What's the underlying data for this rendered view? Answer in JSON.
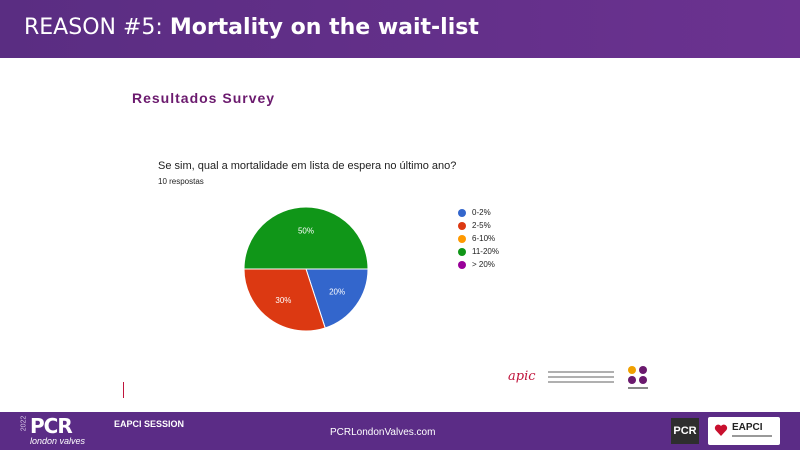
{
  "header": {
    "title_lead": "REASON #5:",
    "title_rest": "Mortality on the wait-list"
  },
  "section_title": "Resultados Survey",
  "question": "Se sim, qual a mortalidade em lista de espera no último ano?",
  "responses": "10 respostas",
  "chart_data": {
    "type": "pie",
    "categories": [
      "0-2%",
      "2-5%",
      "6-10%",
      "11-20%",
      "> 20%"
    ],
    "values": [
      20,
      30,
      0,
      50,
      0
    ],
    "colors": [
      "#3366cc",
      "#dc3912",
      "#ff9900",
      "#109618",
      "#990099"
    ],
    "data_labels": [
      "20%",
      "30%",
      "",
      "50%",
      ""
    ]
  },
  "apic_logo_text": "apic",
  "footer": {
    "year": "2022",
    "brand": "PCR",
    "brand_sub": "london valves",
    "session": "EAPCI SESSION",
    "website": "PCRLondonValves.com",
    "pcr_badge": "PCR",
    "eapci_badge": "EAPCI"
  }
}
